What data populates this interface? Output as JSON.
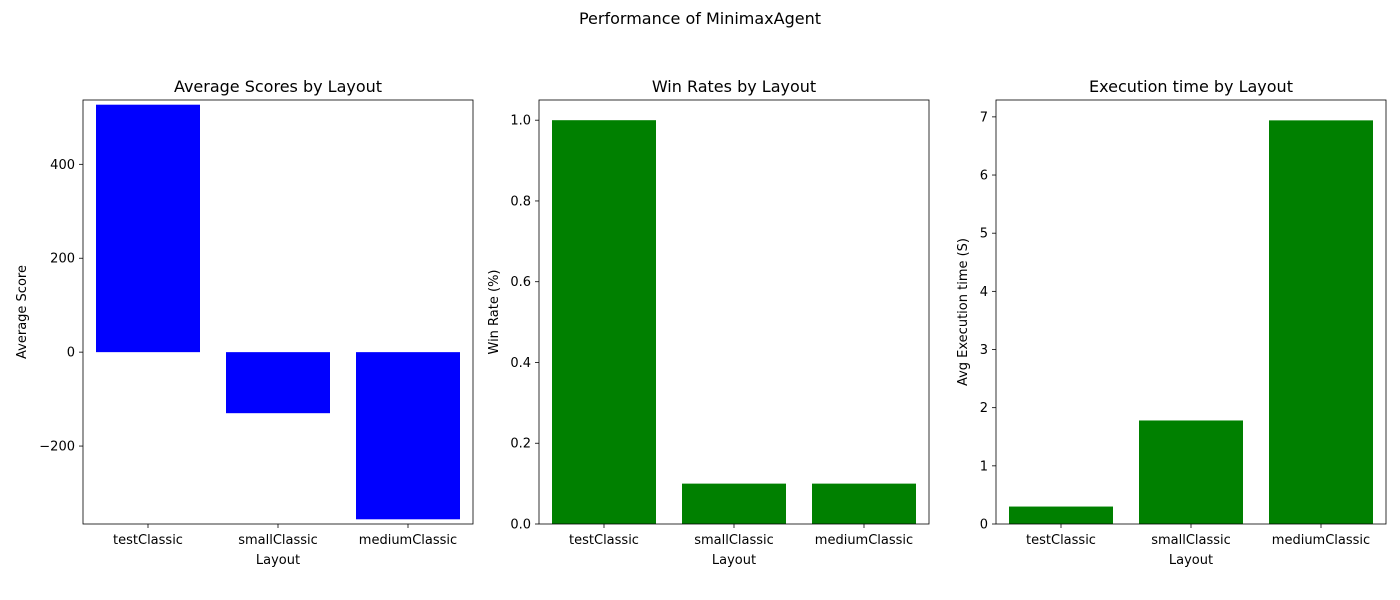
{
  "suptitle": "Performance of MinimaxAgent",
  "chart_data": [
    {
      "type": "bar",
      "title": "Average Scores by Layout",
      "xlabel": "Layout",
      "ylabel": "Average Score",
      "categories": [
        "testClassic",
        "smallClassic",
        "mediumClassic"
      ],
      "values": [
        527,
        -130,
        -356
      ],
      "ylim": [
        -366,
        537
      ],
      "yticks": [
        -200,
        0,
        200,
        400
      ],
      "ytick_labels": [
        "−200",
        "0",
        "200",
        "400"
      ],
      "color": "#0000ff",
      "grid": false,
      "legend": false
    },
    {
      "type": "bar",
      "title": "Win Rates by Layout",
      "xlabel": "Layout",
      "ylabel": "Win Rate (%)",
      "categories": [
        "testClassic",
        "smallClassic",
        "mediumClassic"
      ],
      "values": [
        1.0,
        0.1,
        0.1
      ],
      "ylim": [
        0,
        1.05
      ],
      "yticks": [
        0.0,
        0.2,
        0.4,
        0.6,
        0.8,
        1.0
      ],
      "ytick_labels": [
        "0.0",
        "0.2",
        "0.4",
        "0.6",
        "0.8",
        "1.0"
      ],
      "color": "#008000",
      "grid": false,
      "legend": false
    },
    {
      "type": "bar",
      "title": "Execution time by Layout",
      "xlabel": "Layout",
      "ylabel": "Avg Execution time (S)",
      "categories": [
        "testClassic",
        "smallClassic",
        "mediumClassic"
      ],
      "values": [
        0.3,
        1.78,
        6.94
      ],
      "ylim": [
        0,
        7.29
      ],
      "yticks": [
        0,
        1,
        2,
        3,
        4,
        5,
        6,
        7
      ],
      "ytick_labels": [
        "0",
        "1",
        "2",
        "3",
        "4",
        "5",
        "6",
        "7"
      ],
      "color": "#008000",
      "grid": false,
      "legend": false
    }
  ]
}
